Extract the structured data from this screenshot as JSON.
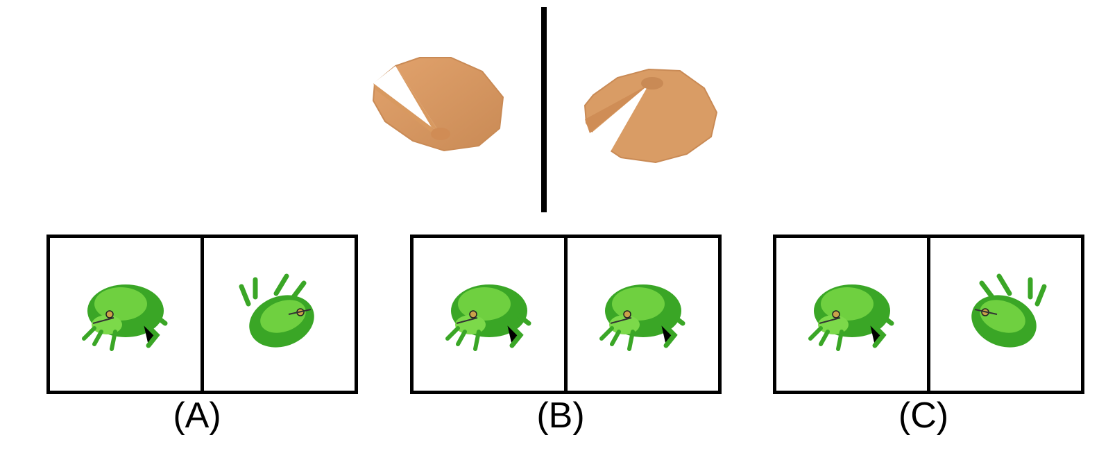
{
  "reference": {
    "left_object": "lily-pad",
    "right_object": "lily-pad",
    "object_color": "#d49560"
  },
  "options": [
    {
      "label": "(A)",
      "left_view": "frog-front",
      "right_view": "frog-top-rotated"
    },
    {
      "label": "(B)",
      "left_view": "frog-front",
      "right_view": "frog-front"
    },
    {
      "label": "(C)",
      "left_view": "frog-front",
      "right_view": "frog-top-mirrored"
    }
  ],
  "colors": {
    "frog_dark": "#2f9a1f",
    "frog_light": "#7cd94a",
    "border": "#000000"
  }
}
